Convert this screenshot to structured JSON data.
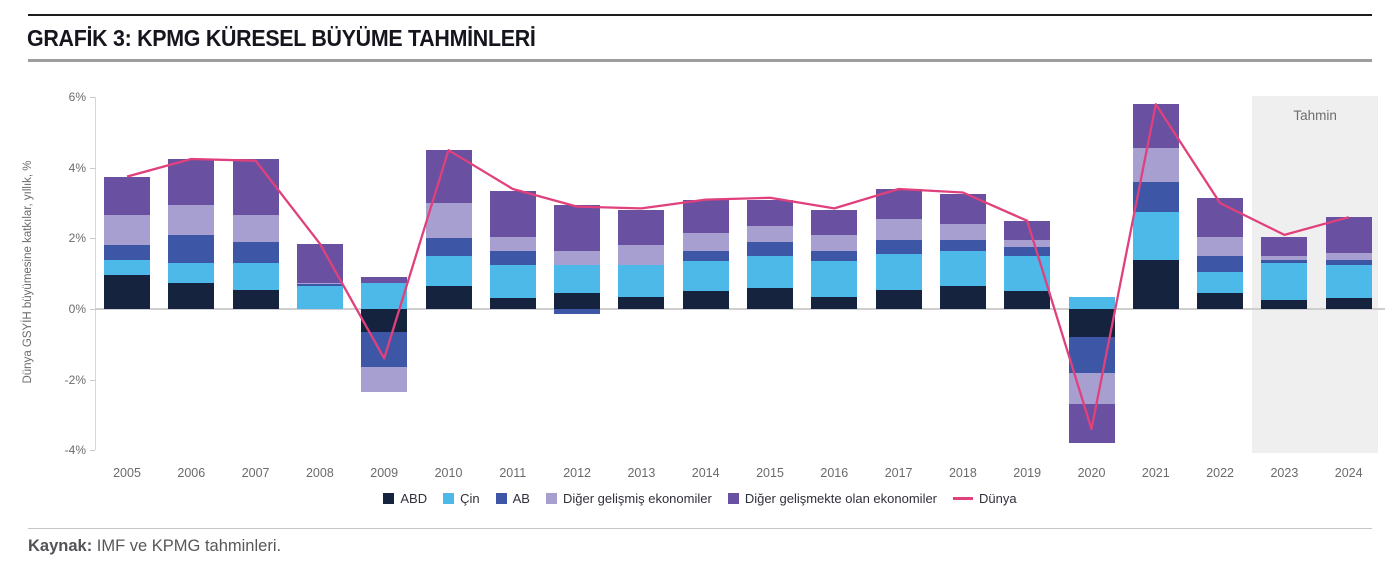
{
  "header": {
    "title": "GRAFİK 3: KPMG KÜRESEL BÜYÜME TAHMİNLERİ"
  },
  "footer": {
    "source_label": "Kaynak:",
    "source_text": " IMF ve KPMG tahminleri."
  },
  "chart_data": {
    "type": "stacked-bar-with-line",
    "title": "GRAFİK 3: KPMG KÜRESEL BÜYÜME TAHMİNLERİ",
    "ylabel": "Dünya GSYİH büyümesine katkılar, yıllık, %",
    "ylim": [
      -4,
      6
    ],
    "ytick_values": [
      6,
      4,
      2,
      0,
      -2,
      -4
    ],
    "ytick_labels": [
      "6%",
      "4%",
      "2%",
      "0%",
      "-2%",
      "-4%"
    ],
    "grid": "zero-line-only",
    "legend_position": "bottom-center",
    "categories": [
      "2005",
      "2006",
      "2007",
      "2008",
      "2009",
      "2010",
      "2011",
      "2012",
      "2013",
      "2014",
      "2015",
      "2016",
      "2017",
      "2018",
      "2019",
      "2020",
      "2021",
      "2022",
      "2023",
      "2024"
    ],
    "series": [
      {
        "key": "abd",
        "name": "ABD",
        "color": "#16233f",
        "values": [
          0.95,
          0.75,
          0.55,
          0.0,
          -0.65,
          0.65,
          0.3,
          0.45,
          0.35,
          0.5,
          0.6,
          0.35,
          0.55,
          0.65,
          0.5,
          -0.8,
          1.4,
          0.45,
          0.25,
          0.3
        ]
      },
      {
        "key": "cin",
        "name": "Çin",
        "color": "#4db9e8",
        "values": [
          0.45,
          0.55,
          0.75,
          0.65,
          0.75,
          0.85,
          0.95,
          0.8,
          0.9,
          0.85,
          0.9,
          1.0,
          1.0,
          1.0,
          1.0,
          0.35,
          1.35,
          0.6,
          1.05,
          0.95
        ]
      },
      {
        "key": "ab",
        "name": "AB",
        "color": "#3d57a6",
        "values": [
          0.4,
          0.8,
          0.6,
          0.05,
          -1.0,
          0.5,
          0.4,
          -0.15,
          0.0,
          0.3,
          0.4,
          0.3,
          0.4,
          0.3,
          0.25,
          -1.0,
          0.85,
          0.45,
          0.1,
          0.15
        ]
      },
      {
        "key": "diger-gelismis",
        "name": "Diğer gelişmiş ekonomiler",
        "color": "#a89fd1",
        "values": [
          0.85,
          0.85,
          0.75,
          0.05,
          -0.7,
          1.0,
          0.4,
          0.4,
          0.55,
          0.5,
          0.45,
          0.45,
          0.6,
          0.45,
          0.2,
          -0.9,
          0.95,
          0.55,
          0.1,
          0.2
        ]
      },
      {
        "key": "diger-gelismekte",
        "name": "Diğer gelişmekte olan ekonomiler",
        "color": "#6950a1",
        "values": [
          1.1,
          1.3,
          1.6,
          1.1,
          0.15,
          1.5,
          1.3,
          1.3,
          1.0,
          0.95,
          0.75,
          0.7,
          0.85,
          0.85,
          0.55,
          -1.1,
          1.25,
          1.1,
          0.55,
          1.0
        ]
      }
    ],
    "line": {
      "key": "dunya",
      "name": "Dünya",
      "color": "#e0417c",
      "values": [
        3.75,
        4.25,
        4.2,
        1.85,
        -1.4,
        4.5,
        3.4,
        2.9,
        2.85,
        3.1,
        3.15,
        2.85,
        3.4,
        3.3,
        2.5,
        -3.4,
        5.8,
        3.0,
        2.1,
        2.6
      ]
    },
    "forecast": {
      "label": "Tahmin",
      "years": [
        "2023",
        "2024"
      ],
      "band_color": "#efefef"
    }
  }
}
